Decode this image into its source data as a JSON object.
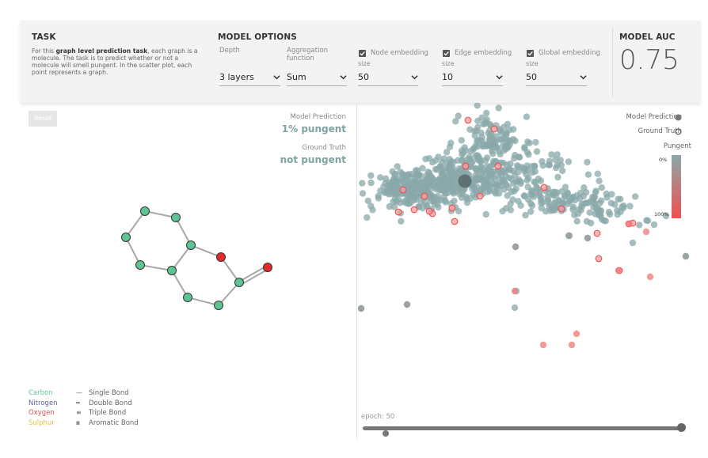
{
  "task": {
    "title": "TASK",
    "desc_pre": "For this ",
    "desc_bold": "graph level prediction task",
    "desc_post": ", each graph is a molecule. The task is to predict whether or not a molecule will smell pungent. In the scatter plot, each point represents a graph."
  },
  "model_options": {
    "title": "MODEL OPTIONS",
    "depth": {
      "label": "Depth",
      "value": "3 layers"
    },
    "aggregation": {
      "label": "Aggregation function",
      "value": "Sum"
    },
    "node_embedding": {
      "label": "Node embedding",
      "size_label": "size",
      "value": "50",
      "checked": true
    },
    "edge_embedding": {
      "label": "Edge embedding",
      "size_label": "size",
      "value": "10",
      "checked": true
    },
    "global_embedding": {
      "label": "Global embedding",
      "size_label": "size",
      "value": "50",
      "checked": true
    }
  },
  "model_auc": {
    "title": "MODEL AUC",
    "value": "0.75"
  },
  "left": {
    "reset_label": "Reset",
    "model_prediction_label": "Model Prediction",
    "model_prediction_value": "1% pungent",
    "ground_truth_label": "Ground Truth",
    "ground_truth_value": "not pungent",
    "atom_legend": [
      {
        "name": "Carbon",
        "color": "#5fc493"
      },
      {
        "name": "Nitrogen",
        "color": "#5a63ae"
      },
      {
        "name": "Oxygen",
        "color": "#e45050"
      },
      {
        "name": "Sulphur",
        "color": "#e8c24a"
      }
    ],
    "bond_legend": [
      {
        "glyph": "—",
        "name": "Single Bond"
      },
      {
        "glyph": "═",
        "name": "Double Bond"
      },
      {
        "glyph": "≡",
        "name": "Triple Bond"
      },
      {
        "glyph": "IIIII",
        "name": "Aromatic Bond"
      }
    ]
  },
  "right": {
    "model_prediction_label": "Model Prediction",
    "ground_truth_label": "Ground Truth",
    "pungent_label": "Pungent",
    "scale_top": "0%",
    "scale_bottom": "100%",
    "epoch_label": "epoch: 50",
    "epoch_value": 50
  },
  "colors": {
    "teal": "#8aa8a9",
    "red": "#f05050",
    "carbon": "#5fc493",
    "oxygen": "#e32b2b"
  }
}
